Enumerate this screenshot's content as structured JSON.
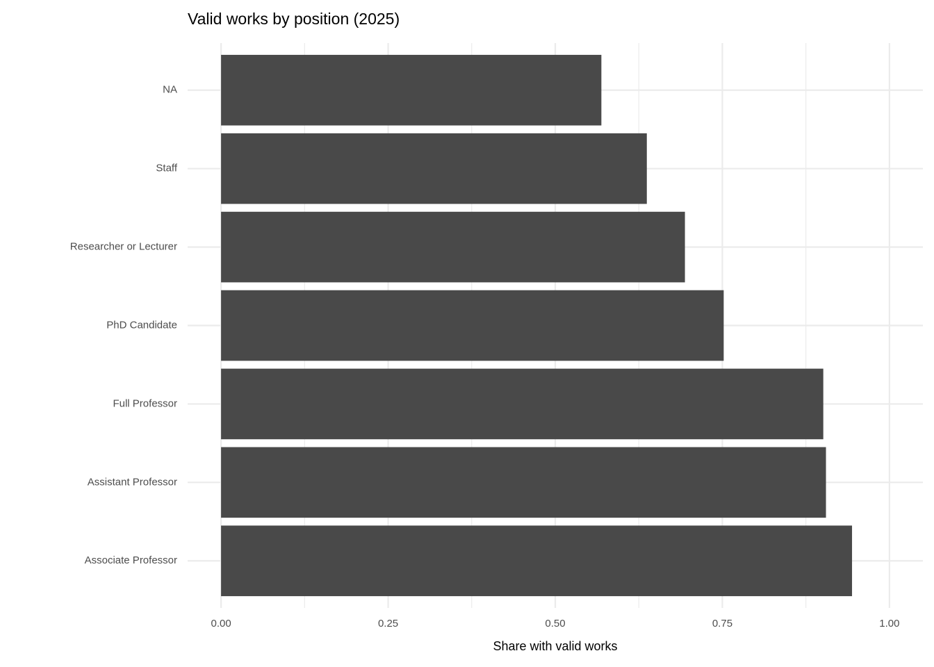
{
  "chart_data": {
    "type": "hbar",
    "title": "Valid works by position (2025)",
    "x_label": "Share with valid works",
    "categories": [
      "NA",
      "Staff",
      "Researcher or Lecturer",
      "PhD Candidate",
      "Full Professor",
      "Assistant Professor",
      "Associate Professor"
    ],
    "values": [
      0.569,
      0.637,
      0.694,
      0.752,
      0.901,
      0.905,
      0.944
    ],
    "color": "#494949",
    "xlim": [
      -0.05,
      1.05
    ],
    "xticks": [
      {
        "value": 0,
        "label": "0.00"
      },
      {
        "value": 0.25,
        "label": "0.25"
      },
      {
        "value": 0.5,
        "label": "0.50"
      },
      {
        "value": 0.75,
        "label": "0.75"
      },
      {
        "value": 1,
        "label": "1.00"
      }
    ],
    "minor_xticks": [
      0.125,
      0.375,
      0.625,
      0.875
    ],
    "grid": true
  }
}
